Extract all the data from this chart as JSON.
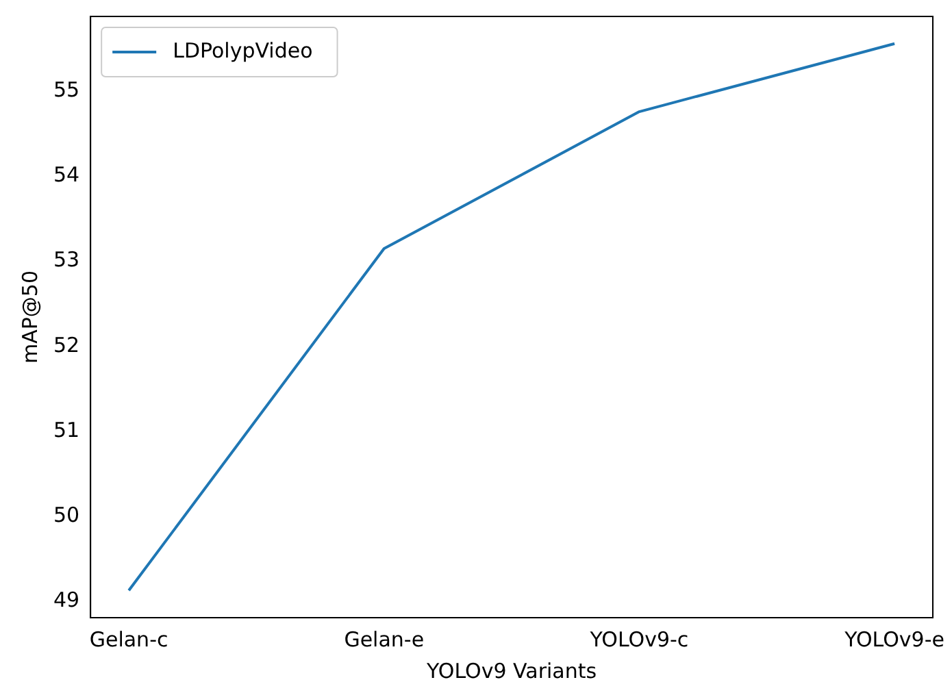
{
  "chart_data": {
    "type": "line",
    "xlabel": "YOLOv9 Variants",
    "ylabel": "mAP@50",
    "categories": [
      "Gelan-c",
      "Gelan-e",
      "YOLOv9-c",
      "YOLOv9-e"
    ],
    "series": [
      {
        "name": "LDPolypVideo",
        "color": "#1f77b4",
        "values": [
          49.13,
          53.15,
          54.76,
          55.56
        ]
      }
    ],
    "ylim": [
      48.81,
      55.88
    ],
    "yticks": [
      49,
      50,
      51,
      52,
      53,
      54,
      55
    ],
    "grid": false,
    "legend": "top left",
    "marker": "none",
    "line_style": "solid"
  }
}
